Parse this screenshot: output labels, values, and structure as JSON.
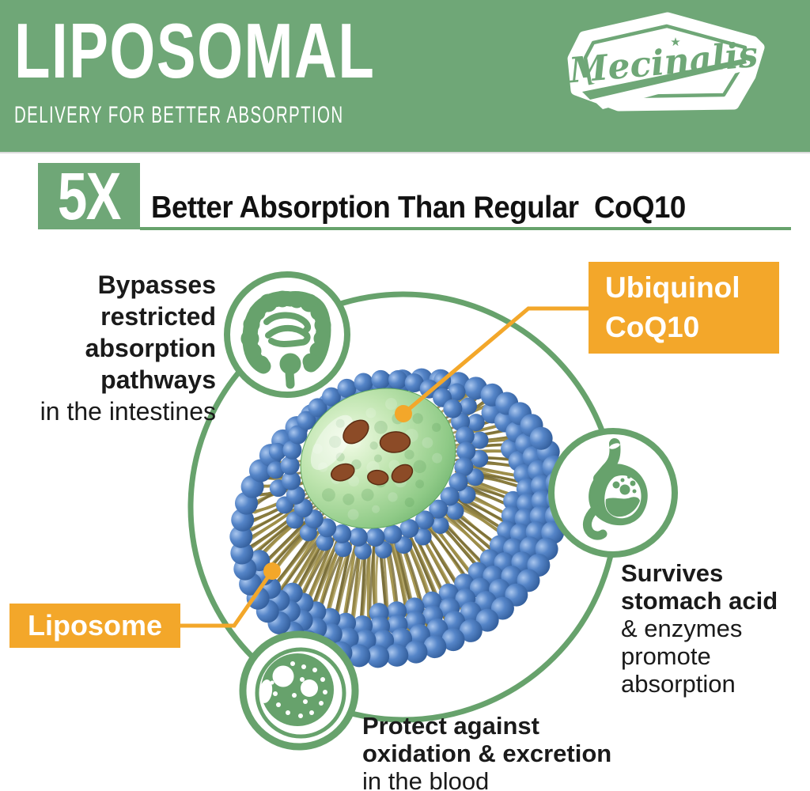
{
  "header": {
    "title": "LIPOSOMAL",
    "subtitle": "DELIVERY FOR BETTER ABSORPTION",
    "brand": "Mecinalis"
  },
  "claim": {
    "multiplier": "5X",
    "heading": "Better Absorption Than Regular  CoQ10"
  },
  "labels": {
    "ubiquinol_line1": "Ubiquinol",
    "ubiquinol_line2": "CoQ10",
    "liposome": "Liposome"
  },
  "notes": {
    "intestines": {
      "bold": [
        "Bypasses",
        "restricted",
        "absorption",
        "pathways"
      ],
      "regular": "in the intestines"
    },
    "stomach": {
      "bold": [
        "Survives",
        "stomach acid"
      ],
      "regular": [
        "& enzymes",
        "promote",
        "absorption"
      ]
    },
    "blood": {
      "bold": [
        "Protect against",
        "oxidation & excretion"
      ],
      "regular": "in the blood"
    }
  },
  "icons": [
    "mecinalis-logo",
    "intestines-icon",
    "stomach-icon",
    "blood-cell-icon",
    "liposome-illustration"
  ],
  "colors": {
    "green_header": "#6FA777",
    "green_line": "#67A26C",
    "orange": "#F3A72A",
    "text": "#1A1A1A",
    "sphere_blue": "#5585C8",
    "tail_olive": "#8E803E",
    "core_green": "#90CB88",
    "particle_brown": "#8C4B27"
  }
}
